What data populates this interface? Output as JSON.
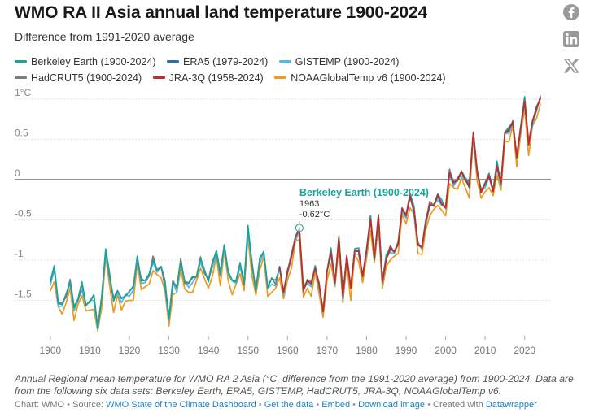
{
  "title": "WMO RA II Asia annual land temperature 1900-2024",
  "subtitle": "Difference from 1991-2020 average",
  "legend": [
    {
      "label": "Berkeley Earth (1900-2024)",
      "color": "#1aa39a"
    },
    {
      "label": "ERA5 (1979-2024)",
      "color": "#2a6fa6"
    },
    {
      "label": "GISTEMP (1900-2024)",
      "color": "#52b9e4"
    },
    {
      "label": "HadCRUT5 (1900-2024)",
      "color": "#7d7d7d"
    },
    {
      "label": "JRA-3Q (1958-2024)",
      "color": "#c62b2b"
    },
    {
      "label": "NOAAGlobalTemp v6 (1900-2024)",
      "color": "#ee9a1d"
    }
  ],
  "tooltip": {
    "series": "Berkeley Earth (1900-2024)",
    "year": "1963",
    "value": "-0.62°C"
  },
  "note": "Annual Regional mean temperature for WMO RA 2 Asia (°C, difference from the 1991-2020 average) from 1900-2024. Data are from the following six data sets: Berkeley Earth, ERA5, GISTEMP, HadCRUT5, JRA-3Q, NOAAGlobalTemp v6.",
  "footer": {
    "chart_by": "Chart: WMO",
    "source_label": "Source:",
    "source": "WMO State of the Climate Dashboard",
    "get_data": "Get the data",
    "embed": "Embed",
    "download": "Download image",
    "created_with": "Created with",
    "tool": "Datawrapper"
  },
  "social": [
    "facebook-icon",
    "linkedin-icon",
    "x-icon"
  ],
  "chart_data": {
    "type": "line",
    "ylim": [
      -1.95,
      1.1
    ],
    "xlim": [
      1899,
      2025
    ],
    "yticks": [
      1,
      0.5,
      0,
      -0.5,
      -1,
      -1.5
    ],
    "ytick_labels": [
      "1°C",
      "0.5",
      "0",
      "-0.5",
      "-1",
      "-1.5"
    ],
    "xticks": [
      1900,
      1910,
      1920,
      1930,
      1940,
      1950,
      1960,
      1970,
      1980,
      1990,
      2000,
      2010,
      2020
    ],
    "base": {
      "start_year": 1900,
      "values": [
        -1.28,
        -1.12,
        -1.53,
        -1.55,
        -1.45,
        -1.25,
        -1.6,
        -1.5,
        -1.32,
        -1.55,
        -1.52,
        -1.46,
        -1.83,
        -1.47,
        -0.88,
        -1.22,
        -1.5,
        -1.38,
        -1.5,
        -1.43,
        -1.4,
        -1.35,
        -1.0,
        -1.25,
        -1.25,
        -1.2,
        -0.98,
        -1.13,
        -1.1,
        -1.3,
        -1.72,
        -1.28,
        -1.35,
        -1.0,
        -1.28,
        -1.3,
        -1.25,
        -1.2,
        -0.98,
        -1.15,
        -1.25,
        -1.05,
        -0.9,
        -1.2,
        -0.8,
        -1.15,
        -1.28,
        -1.25,
        -1.05,
        -1.3,
        -0.62,
        -1.05,
        -1.38,
        -1.0,
        -0.88,
        -1.35,
        -1.25,
        -1.3,
        -1.1,
        -1.4,
        -1.15,
        -0.95,
        -0.72,
        -0.62,
        -1.38,
        -1.25,
        -1.3,
        -1.1,
        -1.3,
        -1.63,
        -1.15,
        -0.9,
        -1.28,
        -0.72,
        -1.45,
        -0.95,
        -1.35,
        -0.88,
        -0.9,
        -1.2,
        -0.88,
        -0.48,
        -0.98,
        -0.45,
        -1.27,
        -0.98,
        -0.85,
        -0.9,
        -0.8,
        -0.35,
        -0.45,
        -0.2,
        -0.38,
        -0.8,
        -0.85,
        -0.52,
        -0.3,
        -0.32,
        -0.2,
        -0.3,
        -0.35,
        0.1,
        -0.05,
        0.0,
        0.1,
        0.0,
        -0.08,
        0.58,
        0.1,
        -0.15,
        -0.05,
        0.05,
        -0.15,
        0.18,
        -0.05,
        0.58,
        0.62,
        0.72,
        0.28,
        0.65,
        0.98,
        0.45,
        0.72,
        0.88,
        1.02
      ]
    },
    "series": [
      {
        "name": "Berkeley Earth (1900-2024)",
        "start_year": 1900,
        "offsets": [
          0.02,
          0.05,
          -0.01,
          0.0,
          0.03,
          -0.02,
          0.01
        ]
      },
      {
        "name": "ERA5 (1979-2024)",
        "start_year": 1979,
        "offsets": [
          0.0,
          -0.02,
          0.01,
          -0.01,
          0.0
        ]
      },
      {
        "name": "GISTEMP (1900-2024)",
        "start_year": 1900,
        "offsets": [
          -0.03,
          0.0,
          -0.05,
          -0.02,
          0.02,
          -0.04
        ]
      },
      {
        "name": "HadCRUT5 (1900-2024)",
        "start_year": 1900,
        "offsets": [
          0.01,
          0.03,
          0.0,
          0.02,
          -0.01
        ]
      },
      {
        "name": "JRA-3Q (1958-2024)",
        "start_year": 1958,
        "offsets": [
          0.0,
          -0.01,
          0.01,
          0.0
        ]
      },
      {
        "name": "NOAAGlobalTemp v6 (1900-2024)",
        "start_year": 1900,
        "offsets": [
          -0.1,
          -0.15,
          -0.05,
          -0.12,
          -0.08
        ]
      }
    ]
  }
}
